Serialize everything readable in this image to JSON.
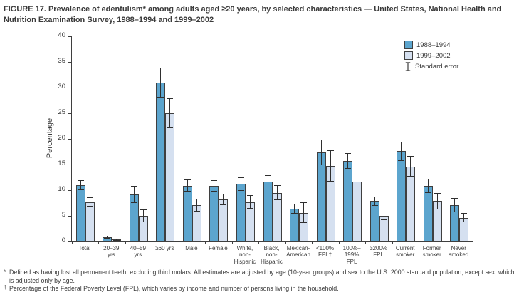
{
  "figure": {
    "title": "FIGURE 17. Prevalence of edentulism* among adults aged ≥20 years, by selected characteristics — United States, National Health and Nutrition Examination Survey, 1988–1994 and 1999–2002"
  },
  "legend": {
    "series": [
      "1988–1994",
      "1999–2002"
    ],
    "standard_error_label": "Standard error"
  },
  "chart_data": {
    "type": "bar",
    "title": "Prevalence of edentulism among adults aged ≥20 years, by selected characteristics, NHANES 1988–1994 and 1999–2002",
    "xlabel": "",
    "ylabel": "Percentage",
    "ylim": [
      0,
      40
    ],
    "yticks": [
      0,
      5,
      10,
      15,
      20,
      25,
      30,
      35,
      40
    ],
    "grid": false,
    "legend_position": "top-right",
    "error_bars": "standard error",
    "categories": [
      "Total",
      "20–39\nyrs",
      "40–59\nyrs",
      "≥60 yrs",
      "Male",
      "Female",
      "White,\nnon-\nHispanic",
      "Black,\nnon-\nHispanic",
      "Mexican-\nAmerican",
      "<100%\nFPL†",
      "100%–\n199%\nFPL",
      "≥200%\nFPL",
      "Current\nsmoker",
      "Former\nsmoker",
      "Never\nsmoked"
    ],
    "series": [
      {
        "name": "1988–1994",
        "color": "#5CA5CE",
        "values": [
          11.0,
          0.8,
          9.2,
          31.0,
          10.9,
          10.8,
          11.2,
          11.7,
          6.4,
          17.4,
          15.7,
          7.9,
          17.6,
          10.8,
          7.1
        ],
        "standard_errors": [
          1.0,
          0.3,
          1.7,
          2.9,
          1.2,
          1.1,
          1.3,
          1.2,
          1.0,
          2.5,
          1.5,
          0.9,
          1.9,
          1.4,
          1.4
        ]
      },
      {
        "name": "1999–2002",
        "color": "#D5E0F0",
        "values": [
          7.7,
          0.4,
          5.0,
          25.0,
          7.1,
          8.2,
          7.7,
          9.5,
          5.6,
          14.7,
          11.6,
          5.0,
          14.6,
          7.9,
          4.6
        ],
        "standard_errors": [
          0.9,
          0.2,
          1.3,
          2.9,
          1.2,
          1.1,
          1.3,
          1.5,
          2.0,
          3.1,
          2.0,
          0.9,
          2.0,
          1.6,
          0.9
        ]
      }
    ]
  },
  "footnotes": [
    {
      "marker": "*",
      "text": "Defined as having lost all permanent teeth, excluding third molars. All estimates are adjusted by age (10-year groups) and sex to the U.S. 2000 standard population, except sex, which is adjusted only by age."
    },
    {
      "marker": "†",
      "text": "Percentage of the Federal Poverty Level (FPL), which varies by income and number of persons living in the household."
    }
  ],
  "colors": {
    "series_1988_1994": "#5CA5CE",
    "series_1999_2002": "#D5E0F0",
    "axis_and_border": "#3f3f3f",
    "error_bar": "#2f2f2f",
    "text": "#3a3a3a",
    "background": "#ffffff"
  }
}
